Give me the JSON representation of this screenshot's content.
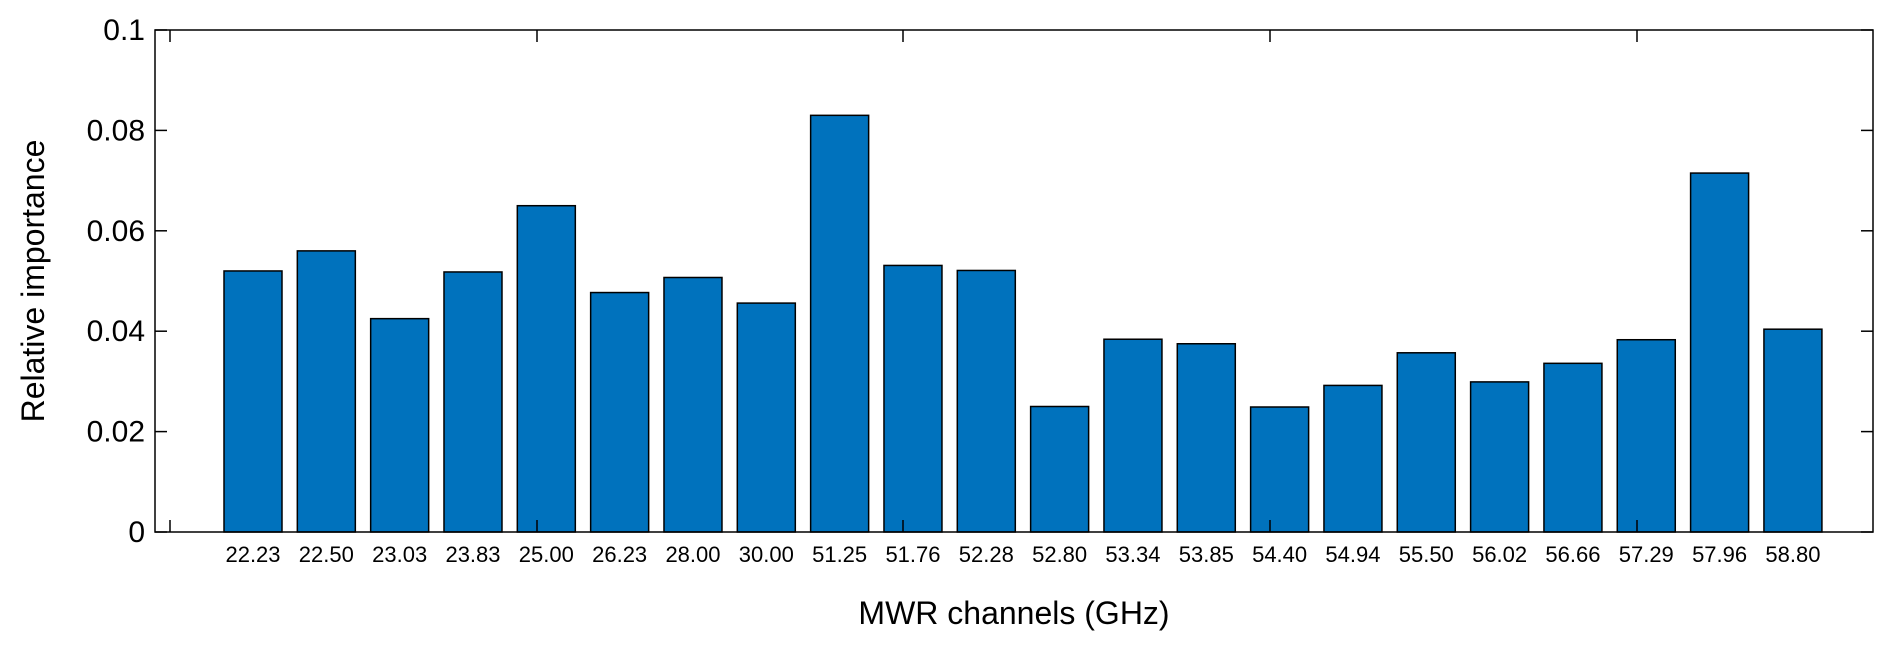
{
  "chart_data": {
    "type": "bar",
    "title": "",
    "xlabel": "MWR channels (GHz)",
    "ylabel": "Relative importance",
    "ylim": [
      0,
      0.1
    ],
    "yticks": [
      "0",
      "0.02",
      "0.04",
      "0.06",
      "0.08",
      "0.1"
    ],
    "yticks_values": [
      0,
      0.02,
      0.04,
      0.06,
      0.08,
      0.1
    ],
    "bar_color": "#0072BD",
    "grid": false,
    "categories": [
      "22.23",
      "22.50",
      "23.03",
      "23.83",
      "25.00",
      "26.23",
      "28.00",
      "30.00",
      "51.25",
      "51.76",
      "52.28",
      "52.80",
      "53.34",
      "53.85",
      "54.40",
      "54.94",
      "55.50",
      "56.02",
      "56.66",
      "57.29",
      "57.96",
      "58.80"
    ],
    "values": [
      0.052,
      0.056,
      0.0425,
      0.0518,
      0.065,
      0.0477,
      0.0507,
      0.0456,
      0.083,
      0.0531,
      0.0521,
      0.025,
      0.0384,
      0.0375,
      0.0249,
      0.0292,
      0.0357,
      0.0299,
      0.0336,
      0.0383,
      0.0715,
      0.0404
    ]
  }
}
